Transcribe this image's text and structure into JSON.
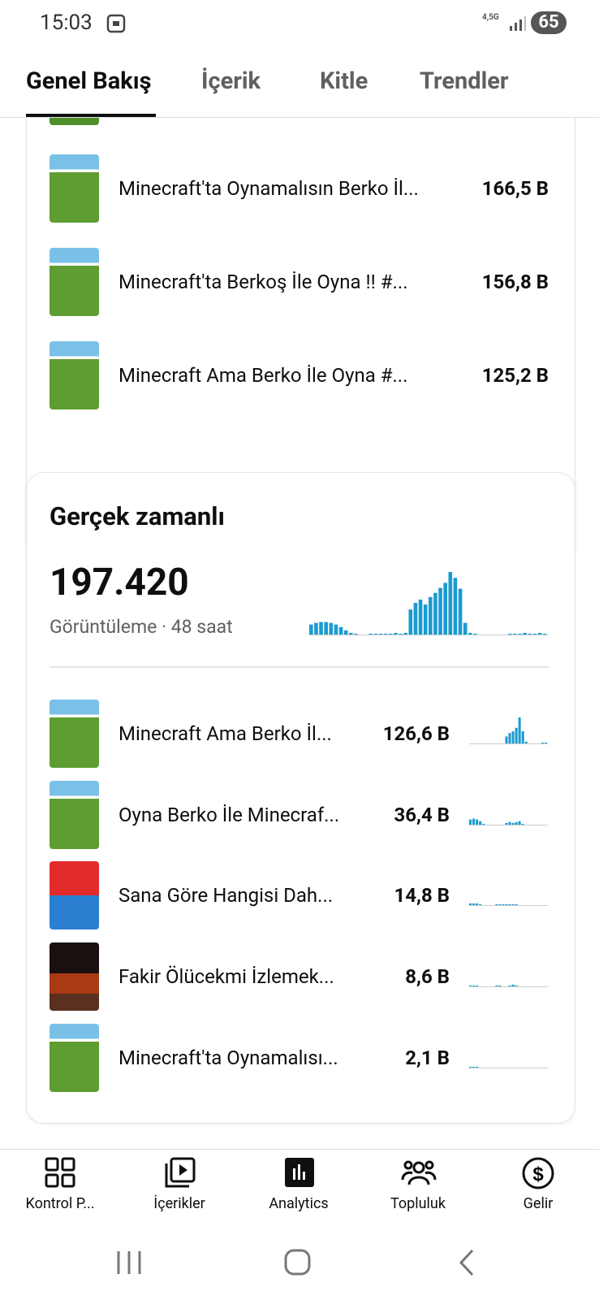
{
  "status_bar": {
    "time": "15:03",
    "network": "4,5G",
    "battery": "65"
  },
  "tabs": [
    "Genel Bakış",
    "İçerik",
    "Kitle",
    "Trendler"
  ],
  "top_content": [
    {
      "title": "Minecraft'ta Oynamalısın Berko İl...",
      "views": "166,5 B"
    },
    {
      "title": "Minecraft'ta Berkoş İle Oyna !! #...",
      "views": "156,8 B"
    },
    {
      "title": "Minecraft Ama Berko İle Oyna #...",
      "views": "125,2 B"
    }
  ],
  "realtime": {
    "title": "Gerçek zamanlı",
    "total": "197.420",
    "subtitle": "Görüntüleme · 48 saat",
    "sparkline": [
      12,
      14,
      15,
      15,
      14,
      12,
      9,
      5,
      2,
      1,
      0,
      0,
      1,
      1,
      1,
      1,
      1,
      2,
      1,
      2,
      30,
      38,
      42,
      36,
      45,
      50,
      56,
      62,
      75,
      68,
      55,
      14,
      2,
      1,
      0,
      0,
      0,
      0,
      0,
      0,
      1,
      1,
      1,
      2,
      1,
      1,
      2,
      1
    ],
    "items": [
      {
        "title": "Minecraft Ama Berko İl...",
        "views": "126,6 B",
        "sparkline": [
          0,
          0,
          0,
          0,
          0,
          0,
          0,
          0,
          0,
          0,
          0,
          8,
          12,
          14,
          18,
          30,
          14,
          2,
          0,
          0,
          0,
          0,
          1,
          1
        ]
      },
      {
        "title": "Oyna Berko İle Minecraf...",
        "views": "36,4 B",
        "sparkline": [
          6,
          7,
          6,
          4,
          1,
          0,
          0,
          0,
          0,
          0,
          0,
          2,
          3,
          2,
          3,
          4,
          1,
          0,
          0,
          0,
          0,
          0,
          0,
          0
        ]
      },
      {
        "title": "Sana Göre Hangisi Dah...",
        "views": "14,8 B",
        "sparkline": [
          2,
          2,
          2,
          1,
          0,
          0,
          0,
          0,
          1,
          1,
          1,
          1,
          1,
          1,
          1,
          0,
          0,
          0,
          0,
          0,
          0,
          0,
          0,
          0
        ]
      },
      {
        "title": "Fakir Ölücekmi İzlemek...",
        "views": "8,6 B",
        "sparkline": [
          1,
          1,
          1,
          0,
          0,
          0,
          0,
          0,
          1,
          1,
          0,
          0,
          1,
          2,
          1,
          0,
          0,
          0,
          0,
          0,
          0,
          0,
          0,
          0
        ]
      },
      {
        "title": "Minecraft'ta Oynamalısı...",
        "views": "2,1 B",
        "sparkline": [
          1,
          1,
          1,
          0,
          0,
          0,
          0,
          0,
          0,
          0,
          0,
          0,
          0,
          0,
          0,
          0,
          0,
          0,
          0,
          0,
          0,
          0,
          0,
          0
        ]
      }
    ]
  },
  "bottom_nav": [
    "Kontrol P...",
    "İçerikler",
    "Analytics",
    "Topluluk",
    "Gelir"
  ]
}
